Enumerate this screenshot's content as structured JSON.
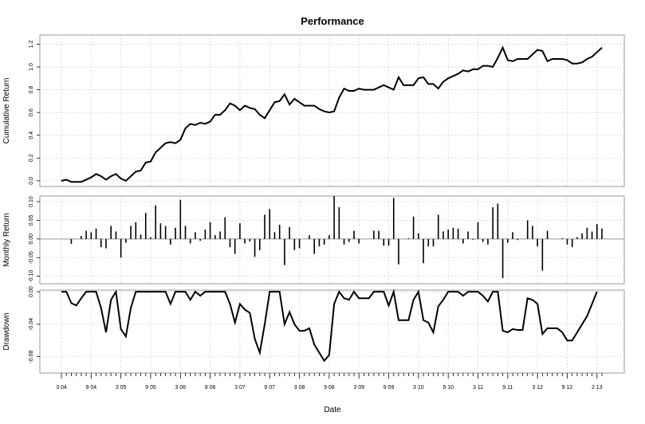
{
  "chart_data": {
    "type": "line",
    "title": "Performance",
    "xlabel": "Date",
    "x_tick_labels": [
      "3 04",
      "9 04",
      "3 05",
      "9 05",
      "3 06",
      "9 06",
      "3 07",
      "9 07",
      "3 08",
      "9 08",
      "3 09",
      "9 09",
      "3 10",
      "9 10",
      "3 11",
      "9 11",
      "3 12",
      "9 12",
      "2 13"
    ],
    "grid": true,
    "panels": [
      {
        "name": "cumulative",
        "type": "line",
        "ylabel": "Cumulative Return",
        "ylim": [
          -0.05,
          1.28
        ],
        "y_ticks": [
          0.0,
          0.2,
          0.4,
          0.6,
          0.8,
          1.0,
          1.2
        ],
        "y_tick_labels": [
          "0.0",
          "0.2",
          "0.4",
          "0.6",
          "0.8",
          "1.0",
          "1.2"
        ],
        "values": [
          0.0,
          0.01,
          -0.01,
          -0.01,
          -0.01,
          0.01,
          0.03,
          0.06,
          0.04,
          0.01,
          0.04,
          0.06,
          0.02,
          0.0,
          0.04,
          0.08,
          0.09,
          0.16,
          0.17,
          0.25,
          0.29,
          0.33,
          0.34,
          0.33,
          0.36,
          0.46,
          0.5,
          0.49,
          0.51,
          0.5,
          0.52,
          0.58,
          0.58,
          0.62,
          0.68,
          0.66,
          0.62,
          0.66,
          0.64,
          0.63,
          0.58,
          0.55,
          0.62,
          0.69,
          0.7,
          0.76,
          0.67,
          0.72,
          0.69,
          0.66,
          0.66,
          0.66,
          0.63,
          0.61,
          0.6,
          0.61,
          0.73,
          0.81,
          0.79,
          0.79,
          0.81,
          0.8,
          0.8,
          0.8,
          0.82,
          0.84,
          0.82,
          0.8,
          0.91,
          0.84,
          0.84,
          0.84,
          0.9,
          0.91,
          0.85,
          0.85,
          0.81,
          0.87,
          0.9,
          0.92,
          0.94,
          0.97,
          0.96,
          0.98,
          0.98,
          1.01,
          1.01,
          1.0,
          1.08,
          1.17,
          1.06,
          1.05,
          1.07,
          1.07,
          1.07,
          1.11,
          1.15,
          1.14,
          1.05,
          1.07,
          1.07,
          1.07,
          1.06,
          1.03,
          1.03,
          1.04,
          1.07,
          1.09,
          1.13,
          1.17
        ]
      },
      {
        "name": "monthly",
        "type": "bar",
        "ylabel": "Monthly Return",
        "ylim": [
          -0.12,
          0.115
        ],
        "y_ticks": [
          -0.1,
          -0.05,
          0.0,
          0.05,
          0.1
        ],
        "y_tick_labels": [
          "-0.10",
          "-0.05",
          "0.00",
          "0.05",
          "0.10"
        ],
        "values": [
          0.0,
          0.0,
          -0.013,
          0.0,
          0.008,
          0.022,
          0.018,
          0.028,
          -0.022,
          -0.025,
          0.035,
          0.02,
          -0.05,
          -0.01,
          0.035,
          0.045,
          0.012,
          0.07,
          0.005,
          0.09,
          0.042,
          0.035,
          -0.015,
          0.03,
          0.105,
          0.035,
          -0.012,
          0.018,
          -0.005,
          0.025,
          0.045,
          0.01,
          0.02,
          0.058,
          -0.022,
          -0.04,
          0.042,
          -0.012,
          -0.007,
          -0.048,
          -0.03,
          0.065,
          0.08,
          0.018,
          0.038,
          -0.07,
          0.032,
          -0.03,
          -0.025,
          0.0,
          0.01,
          -0.04,
          -0.02,
          -0.015,
          0.01,
          0.115,
          0.085,
          -0.015,
          -0.008,
          0.022,
          -0.012,
          0.0,
          0.0,
          0.022,
          0.022,
          -0.018,
          -0.018,
          0.11,
          -0.068,
          0.0,
          0.002,
          0.06,
          0.015,
          -0.065,
          -0.02,
          -0.02,
          0.065,
          0.02,
          0.025,
          0.03,
          0.028,
          -0.012,
          0.02,
          -0.002,
          0.045,
          -0.008,
          -0.015,
          0.085,
          0.095,
          -0.105,
          -0.01,
          0.018,
          -0.003,
          0.0,
          0.05,
          0.035,
          -0.02,
          -0.085,
          0.022,
          0.0,
          0.0,
          0.002,
          -0.015,
          -0.022,
          0.005,
          0.015,
          0.03,
          0.02,
          0.04,
          0.028
        ]
      },
      {
        "name": "drawdown",
        "type": "line",
        "ylabel": "Drawdown",
        "ylim": [
          -0.1,
          0.002
        ],
        "y_ticks": [
          0.0,
          -0.04,
          -0.08
        ],
        "y_tick_labels": [
          "0.00",
          "-0.04",
          "-0.08"
        ],
        "values": [
          0.0,
          0.0,
          -0.014,
          -0.017,
          -0.008,
          0.0,
          0.0,
          0.0,
          -0.02,
          -0.05,
          -0.01,
          0.0,
          -0.046,
          -0.055,
          -0.02,
          0.0,
          0.0,
          0.0,
          0.0,
          0.0,
          0.0,
          0.0,
          -0.015,
          0.0,
          0.0,
          0.0,
          -0.01,
          0.0,
          -0.005,
          0.0,
          0.0,
          0.0,
          0.0,
          0.0,
          -0.015,
          -0.038,
          -0.015,
          -0.022,
          -0.026,
          -0.058,
          -0.075,
          -0.04,
          0.0,
          0.0,
          0.0,
          -0.04,
          -0.025,
          -0.04,
          -0.048,
          -0.048,
          -0.045,
          -0.065,
          -0.075,
          -0.085,
          -0.078,
          -0.015,
          0.0,
          -0.008,
          -0.01,
          0.0,
          -0.008,
          -0.008,
          -0.008,
          0.0,
          0.0,
          0.0,
          -0.017,
          0.0,
          -0.035,
          -0.035,
          -0.035,
          -0.01,
          0.0,
          -0.035,
          -0.038,
          -0.05,
          -0.018,
          -0.01,
          0.0,
          0.0,
          0.0,
          -0.005,
          0.0,
          0.0,
          0.0,
          -0.005,
          -0.012,
          0.0,
          0.0,
          -0.048,
          -0.05,
          -0.046,
          -0.047,
          -0.047,
          -0.008,
          -0.01,
          -0.015,
          -0.052,
          -0.045,
          -0.045,
          -0.045,
          -0.05,
          -0.06,
          -0.06,
          -0.05,
          -0.04,
          -0.03,
          -0.015,
          0.0
        ]
      }
    ]
  }
}
